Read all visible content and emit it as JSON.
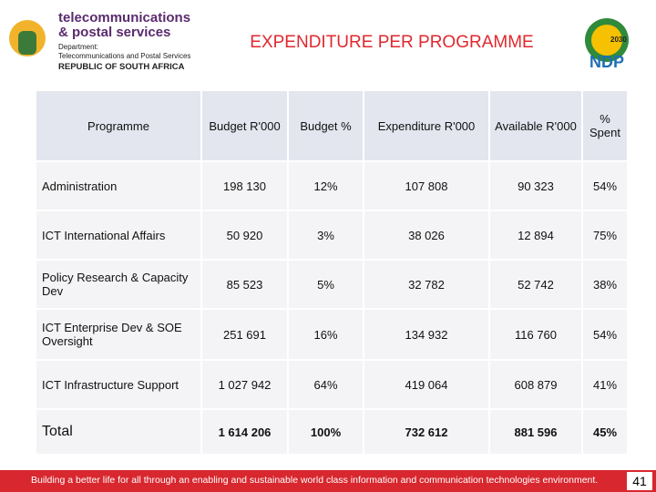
{
  "header": {
    "logo": {
      "line1": "telecommunications",
      "line2": "& postal services",
      "department": "Department:",
      "department_name": "Telecommunications and Postal Services",
      "country": "REPUBLIC OF SOUTH AFRICA"
    },
    "title": "EXPENDITURE  PER PROGRAMME",
    "ndp_logo": {
      "year": "2030",
      "text": "NDP"
    }
  },
  "table": {
    "columns": [
      "Programme",
      "Budget R'000",
      "Budget %",
      "Expenditure R'000",
      "Available R'000",
      "% Spent"
    ],
    "rows": [
      [
        "Administration",
        "198 130",
        "12%",
        "107 808",
        "90 323",
        "54%"
      ],
      [
        "ICT International Affairs",
        "50 920",
        "3%",
        "38 026",
        "12 894",
        "75%"
      ],
      [
        "Policy Research & Capacity Dev",
        "85 523",
        "5%",
        "32 782",
        "52 742",
        "38%"
      ],
      [
        "ICT Enterprise Dev & SOE Oversight",
        "251 691",
        "16%",
        "134 932",
        "116 760",
        "54%"
      ],
      [
        "ICT Infrastructure Support",
        "1 027 942",
        "64%",
        "419 064",
        "608 879",
        "41%"
      ],
      [
        "Total",
        "1 614 206",
        "100%",
        "732 612",
        "881 596",
        "45%"
      ]
    ]
  },
  "footer": {
    "text": "Building a better life for all through an enabling and sustainable world class information and communication technologies environment.",
    "page": "41"
  }
}
